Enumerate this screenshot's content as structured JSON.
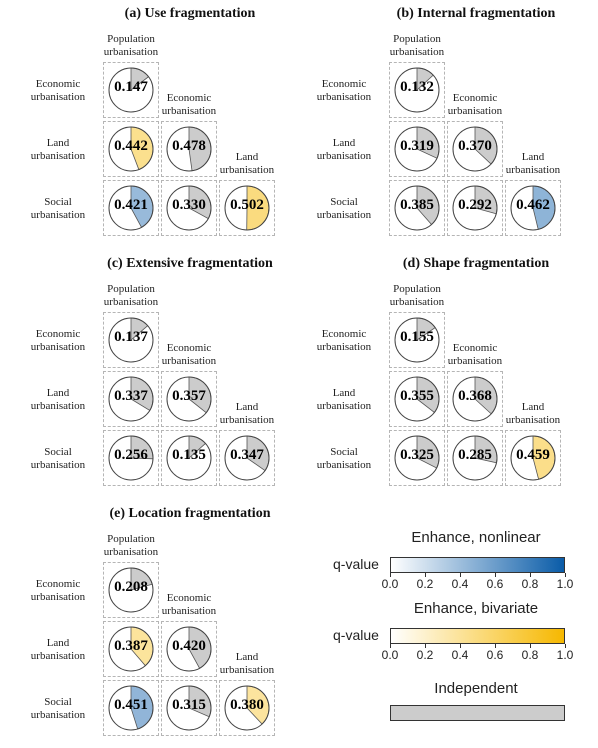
{
  "chart_data": [
    {
      "type": "pie",
      "title": "(a) Use fragmentation",
      "column_labels": [
        "Population\nurbanisation",
        "Economic\nurbanisation",
        "Land\nurbanisation"
      ],
      "row_labels": [
        "Economic\nurbanisation",
        "Land\nurbanisation",
        "Social\nurbanisation"
      ],
      "cells": [
        [
          {
            "q": 0.147,
            "category": "independent"
          }
        ],
        [
          {
            "q": 0.442,
            "category": "bivariate"
          },
          {
            "q": 0.478,
            "category": "independent"
          }
        ],
        [
          {
            "q": 0.421,
            "category": "nonlinear"
          },
          {
            "q": 0.33,
            "category": "independent"
          },
          {
            "q": 0.502,
            "category": "bivariate"
          }
        ]
      ]
    },
    {
      "type": "pie",
      "title": "(b) Internal fragmentation",
      "column_labels": [
        "Population\nurbanisation",
        "Economic\nurbanisation",
        "Land\nurbanisation"
      ],
      "row_labels": [
        "Economic\nurbanisation",
        "Land\nurbanisation",
        "Social\nurbanisation"
      ],
      "cells": [
        [
          {
            "q": 0.132,
            "category": "independent"
          }
        ],
        [
          {
            "q": 0.319,
            "category": "independent"
          },
          {
            "q": 0.37,
            "category": "independent"
          }
        ],
        [
          {
            "q": 0.385,
            "category": "independent"
          },
          {
            "q": 0.292,
            "category": "independent"
          },
          {
            "q": 0.462,
            "category": "nonlinear"
          }
        ]
      ]
    },
    {
      "type": "pie",
      "title": "(c) Extensive fragmentation",
      "column_labels": [
        "Population\nurbanisation",
        "Economic\nurbanisation",
        "Land\nurbanisation"
      ],
      "row_labels": [
        "Economic\nurbanisation",
        "Land\nurbanisation",
        "Social\nurbanisation"
      ],
      "cells": [
        [
          {
            "q": 0.137,
            "category": "independent"
          }
        ],
        [
          {
            "q": 0.337,
            "category": "independent"
          },
          {
            "q": 0.357,
            "category": "independent"
          }
        ],
        [
          {
            "q": 0.256,
            "category": "independent"
          },
          {
            "q": 0.135,
            "category": "independent"
          },
          {
            "q": 0.347,
            "category": "independent"
          }
        ]
      ]
    },
    {
      "type": "pie",
      "title": "(d) Shape fragmentation",
      "column_labels": [
        "Population\nurbanisation",
        "Economic\nurbanisation",
        "Land\nurbanisation"
      ],
      "row_labels": [
        "Economic\nurbanisation",
        "Land\nurbanisation",
        "Social\nurbanisation"
      ],
      "cells": [
        [
          {
            "q": 0.155,
            "category": "independent"
          }
        ],
        [
          {
            "q": 0.355,
            "category": "independent"
          },
          {
            "q": 0.368,
            "category": "independent"
          }
        ],
        [
          {
            "q": 0.325,
            "category": "independent"
          },
          {
            "q": 0.285,
            "category": "independent"
          },
          {
            "q": 0.459,
            "category": "bivariate"
          }
        ]
      ]
    },
    {
      "type": "pie",
      "title": "(e) Location fragmentation",
      "column_labels": [
        "Population\nurbanisation",
        "Economic\nurbanisation",
        "Land\nurbanisation"
      ],
      "row_labels": [
        "Economic\nurbanisation",
        "Land\nurbanisation",
        "Social\nurbanisation"
      ],
      "cells": [
        [
          {
            "q": 0.208,
            "category": "independent"
          }
        ],
        [
          {
            "q": 0.387,
            "category": "bivariate"
          },
          {
            "q": 0.42,
            "category": "independent"
          }
        ],
        [
          {
            "q": 0.451,
            "category": "nonlinear"
          },
          {
            "q": 0.315,
            "category": "independent"
          },
          {
            "q": 0.38,
            "category": "bivariate"
          }
        ]
      ]
    }
  ],
  "legend": {
    "nonlinear": {
      "title": "Enhance, nonlinear",
      "label": "q-value",
      "color_low": "#ffffff",
      "color_high": "#0a5ca8",
      "ticks": [
        "0.0",
        "0.2",
        "0.4",
        "0.6",
        "0.8",
        "1.0"
      ]
    },
    "bivariate": {
      "title": "Enhance, bivariate",
      "label": "q-value",
      "color_low": "#ffffff",
      "color_high": "#f6b800",
      "ticks": [
        "0.0",
        "0.2",
        "0.4",
        "0.6",
        "0.8",
        "1.0"
      ]
    },
    "independent": {
      "title": "Independent",
      "color": "#cccccc"
    }
  }
}
